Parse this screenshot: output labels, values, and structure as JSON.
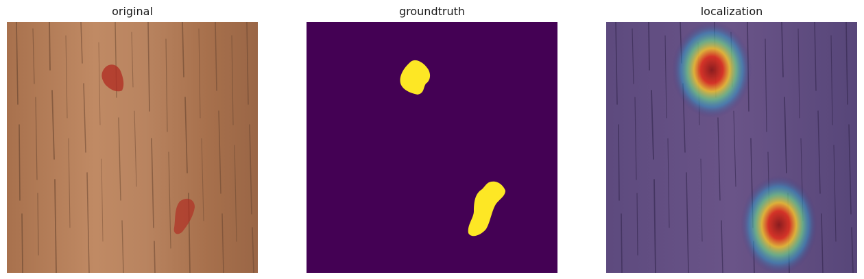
{
  "panels": [
    {
      "title": "original"
    },
    {
      "title": "groundtruth"
    },
    {
      "title": "localization"
    }
  ],
  "colors": {
    "wood_base": "#b07a55",
    "wood_light": "#c4906a",
    "wood_grain": "#6e4a33",
    "stain": "#b02a20",
    "mask_background": "#440154",
    "mask_foreground": "#fde725",
    "overlay_tint": "#3b2d7a"
  }
}
